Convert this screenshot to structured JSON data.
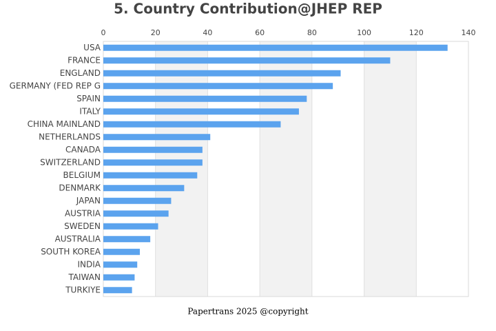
{
  "chart_data": {
    "type": "hbar",
    "title": "5. Country Contribution@JHEP REP",
    "categories": [
      "USA",
      "FRANCE",
      "ENGLAND",
      "GERMANY (FED REP G",
      "SPAIN",
      "ITALY",
      "CHINA MAINLAND",
      "NETHERLANDS",
      "CANADA",
      "SWITZERLAND",
      "BELGIUM",
      "DENMARK",
      "JAPAN",
      "AUSTRIA",
      "SWEDEN",
      "AUSTRALIA",
      "SOUTH KOREA",
      "INDIA",
      "TAIWAN",
      "TURKIYE"
    ],
    "values": [
      132,
      110,
      91,
      88,
      78,
      75,
      68,
      41,
      38,
      38,
      36,
      31,
      26,
      25,
      21,
      18,
      14,
      13,
      12,
      11
    ],
    "color": "#5ba3ee",
    "xlim": [
      0,
      140
    ],
    "xticks": [
      0,
      20,
      40,
      60,
      80,
      100,
      120,
      140
    ],
    "grid": true,
    "band_color": "#f2f2f2",
    "footer": "Papertrans 2025 @copyright"
  }
}
